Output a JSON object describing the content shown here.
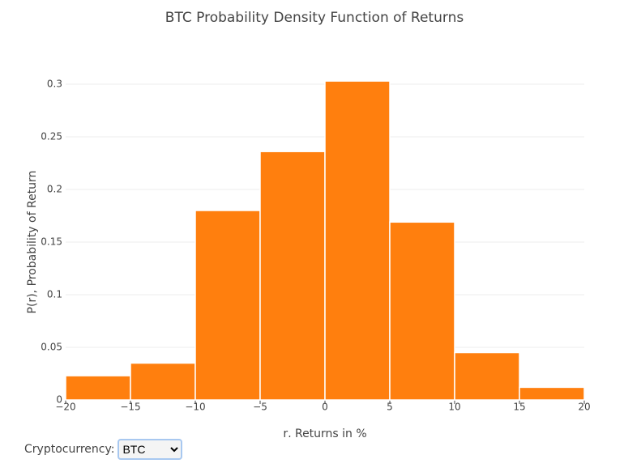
{
  "chart_data": {
    "type": "histogram",
    "title": "BTC Probability Density Function of Returns",
    "x_label": "r, Returns in %",
    "y_label": "P(r), Probability of Return",
    "bins": [
      -20,
      -15,
      -10,
      -5,
      0,
      5,
      10,
      15,
      20
    ],
    "values": [
      0.023,
      0.035,
      0.18,
      0.236,
      0.303,
      0.169,
      0.045,
      0.012
    ],
    "color": "#ff7f0e",
    "xlim": [
      -20,
      20
    ],
    "xticks": [
      {
        "value": -20,
        "label": "−20"
      },
      {
        "value": -15,
        "label": "−15"
      },
      {
        "value": -10,
        "label": "−10"
      },
      {
        "value": -5,
        "label": "−5"
      },
      0,
      5,
      10,
      15,
      20
    ],
    "ylim": [
      0,
      0.32
    ],
    "yticks": [
      0,
      0.05,
      0.1,
      0.15,
      0.2,
      0.25,
      0.3
    ],
    "grid": true
  },
  "controls": {
    "label": "Cryptocurrency:",
    "selected": "BTC"
  }
}
